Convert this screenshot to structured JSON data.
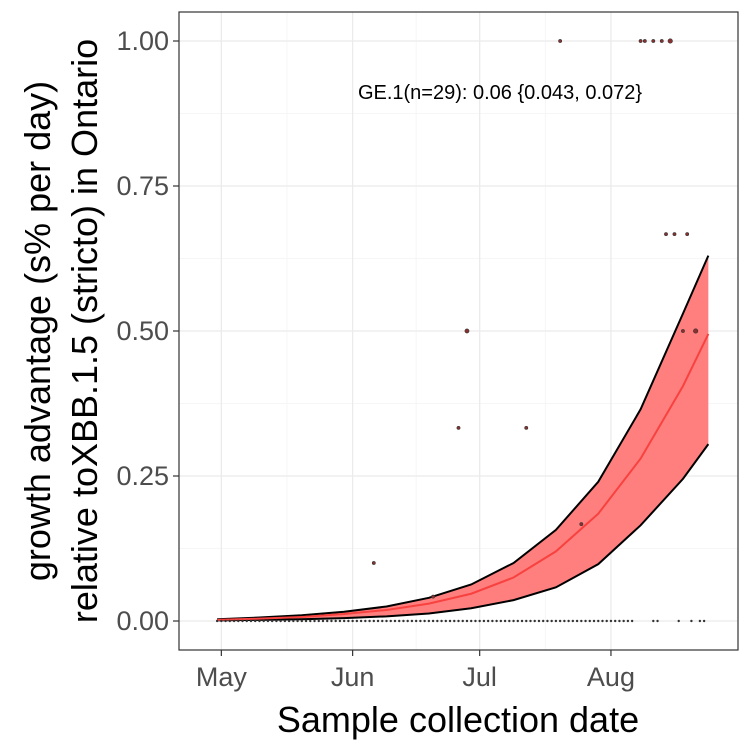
{
  "chart_data": {
    "type": "line",
    "title": "",
    "xlabel": "Sample collection date",
    "ylabel_line1": "growth advantage (s% per day)",
    "ylabel_line2": "relative toXBB.1.5 (stricto) in Ontario",
    "annotation": "GE.1(n=29): 0.06 {0.043, 0.072}",
    "xlim": [
      "2023-04-21",
      "2023-08-31"
    ],
    "ylim": [
      -0.05,
      1.05
    ],
    "x_ticks": [
      {
        "date": "2023-05-01",
        "label": "May"
      },
      {
        "date": "2023-06-01",
        "label": "Jun"
      },
      {
        "date": "2023-07-01",
        "label": "Jul"
      },
      {
        "date": "2023-08-01",
        "label": "Aug"
      }
    ],
    "y_ticks": [
      {
        "value": 0.0,
        "label": "0.00"
      },
      {
        "value": 0.25,
        "label": "0.25"
      },
      {
        "value": 0.5,
        "label": "0.50"
      },
      {
        "value": 0.75,
        "label": "0.75"
      },
      {
        "value": 1.0,
        "label": "1.00"
      }
    ],
    "grid": true,
    "fit": {
      "name": "GE.1",
      "color": "#f8423f",
      "band_color": "#ff7f7f",
      "x": [
        "2023-04-30",
        "2023-05-10",
        "2023-05-20",
        "2023-05-30",
        "2023-06-09",
        "2023-06-19",
        "2023-06-29",
        "2023-07-09",
        "2023-07-19",
        "2023-07-29",
        "2023-08-08",
        "2023-08-18",
        "2023-08-24"
      ],
      "mean": [
        0.002,
        0.004,
        0.007,
        0.012,
        0.019,
        0.03,
        0.047,
        0.075,
        0.12,
        0.185,
        0.28,
        0.405,
        0.495
      ],
      "upper": [
        0.003,
        0.006,
        0.01,
        0.016,
        0.025,
        0.04,
        0.063,
        0.1,
        0.157,
        0.24,
        0.365,
        0.53,
        0.63
      ],
      "lower": [
        0.001,
        0.002,
        0.003,
        0.005,
        0.008,
        0.013,
        0.022,
        0.036,
        0.058,
        0.098,
        0.165,
        0.245,
        0.305
      ]
    },
    "points": [
      {
        "date": "2023-06-06",
        "y": 0.1,
        "size": 1
      },
      {
        "date": "2023-06-20",
        "y": 0.042,
        "size": 1
      },
      {
        "date": "2023-06-26",
        "y": 0.333,
        "size": 1
      },
      {
        "date": "2023-06-28",
        "y": 0.5,
        "size": 1.3
      },
      {
        "date": "2023-07-12",
        "y": 0.333,
        "size": 1
      },
      {
        "date": "2023-07-20",
        "y": 1.0,
        "size": 1
      },
      {
        "date": "2023-07-25",
        "y": 0.167,
        "size": 1
      },
      {
        "date": "2023-08-08",
        "y": 1.0,
        "size": 1
      },
      {
        "date": "2023-08-09",
        "y": 1.0,
        "size": 1
      },
      {
        "date": "2023-08-11",
        "y": 1.0,
        "size": 1
      },
      {
        "date": "2023-08-13",
        "y": 1.0,
        "size": 1
      },
      {
        "date": "2023-08-15",
        "y": 1.0,
        "size": 1.4
      },
      {
        "date": "2023-08-14",
        "y": 0.667,
        "size": 1
      },
      {
        "date": "2023-08-16",
        "y": 0.667,
        "size": 1
      },
      {
        "date": "2023-08-19",
        "y": 0.667,
        "size": 1
      },
      {
        "date": "2023-08-18",
        "y": 0.5,
        "size": 1
      },
      {
        "date": "2023-08-21",
        "y": 0.5,
        "size": 1.4
      }
    ],
    "zero_points_ranges": [
      [
        "2023-04-30",
        "2023-08-06"
      ],
      [
        "2023-08-11",
        "2023-08-12"
      ],
      [
        "2023-08-17",
        "2023-08-17"
      ],
      [
        "2023-08-20",
        "2023-08-20"
      ],
      [
        "2023-08-22",
        "2023-08-23"
      ]
    ]
  }
}
